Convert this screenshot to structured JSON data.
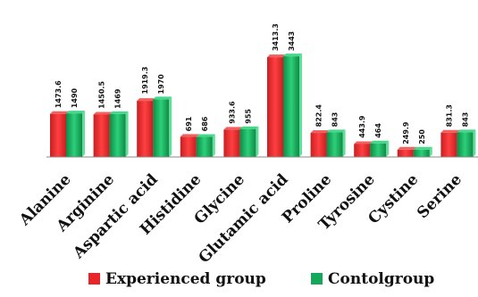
{
  "chart_data": {
    "type": "bar",
    "categories": [
      "Alanine",
      "Arginine",
      "Aspartic acid",
      "Histidine",
      "Glycine",
      "Glutamic acid",
      "Proline",
      "Tyrosine",
      "Cystine",
      "Serine"
    ],
    "series": [
      {
        "name": "Experienced group",
        "color": "#e8262a",
        "values": [
          1473.6,
          1450.5,
          1919.3,
          691,
          933.6,
          3413.3,
          822.4,
          443.9,
          249.9,
          831.3
        ],
        "labels": [
          "1473.6",
          "1450.5",
          "1919.3",
          "691",
          "933.6",
          "3413.3",
          "822.4",
          "443.9",
          "249.9",
          "831.3"
        ]
      },
      {
        "name": "Contolgroup",
        "color": "#16a85a",
        "values": [
          1490,
          1469,
          1970,
          686,
          955,
          3443,
          843,
          464,
          250,
          843
        ],
        "labels": [
          "1490",
          "1469",
          "1970",
          "686",
          "955",
          "3443",
          "843",
          "464",
          "250",
          "843"
        ]
      }
    ],
    "ylim": [
      0,
      3600
    ],
    "grid": false,
    "legend": "bottom"
  }
}
